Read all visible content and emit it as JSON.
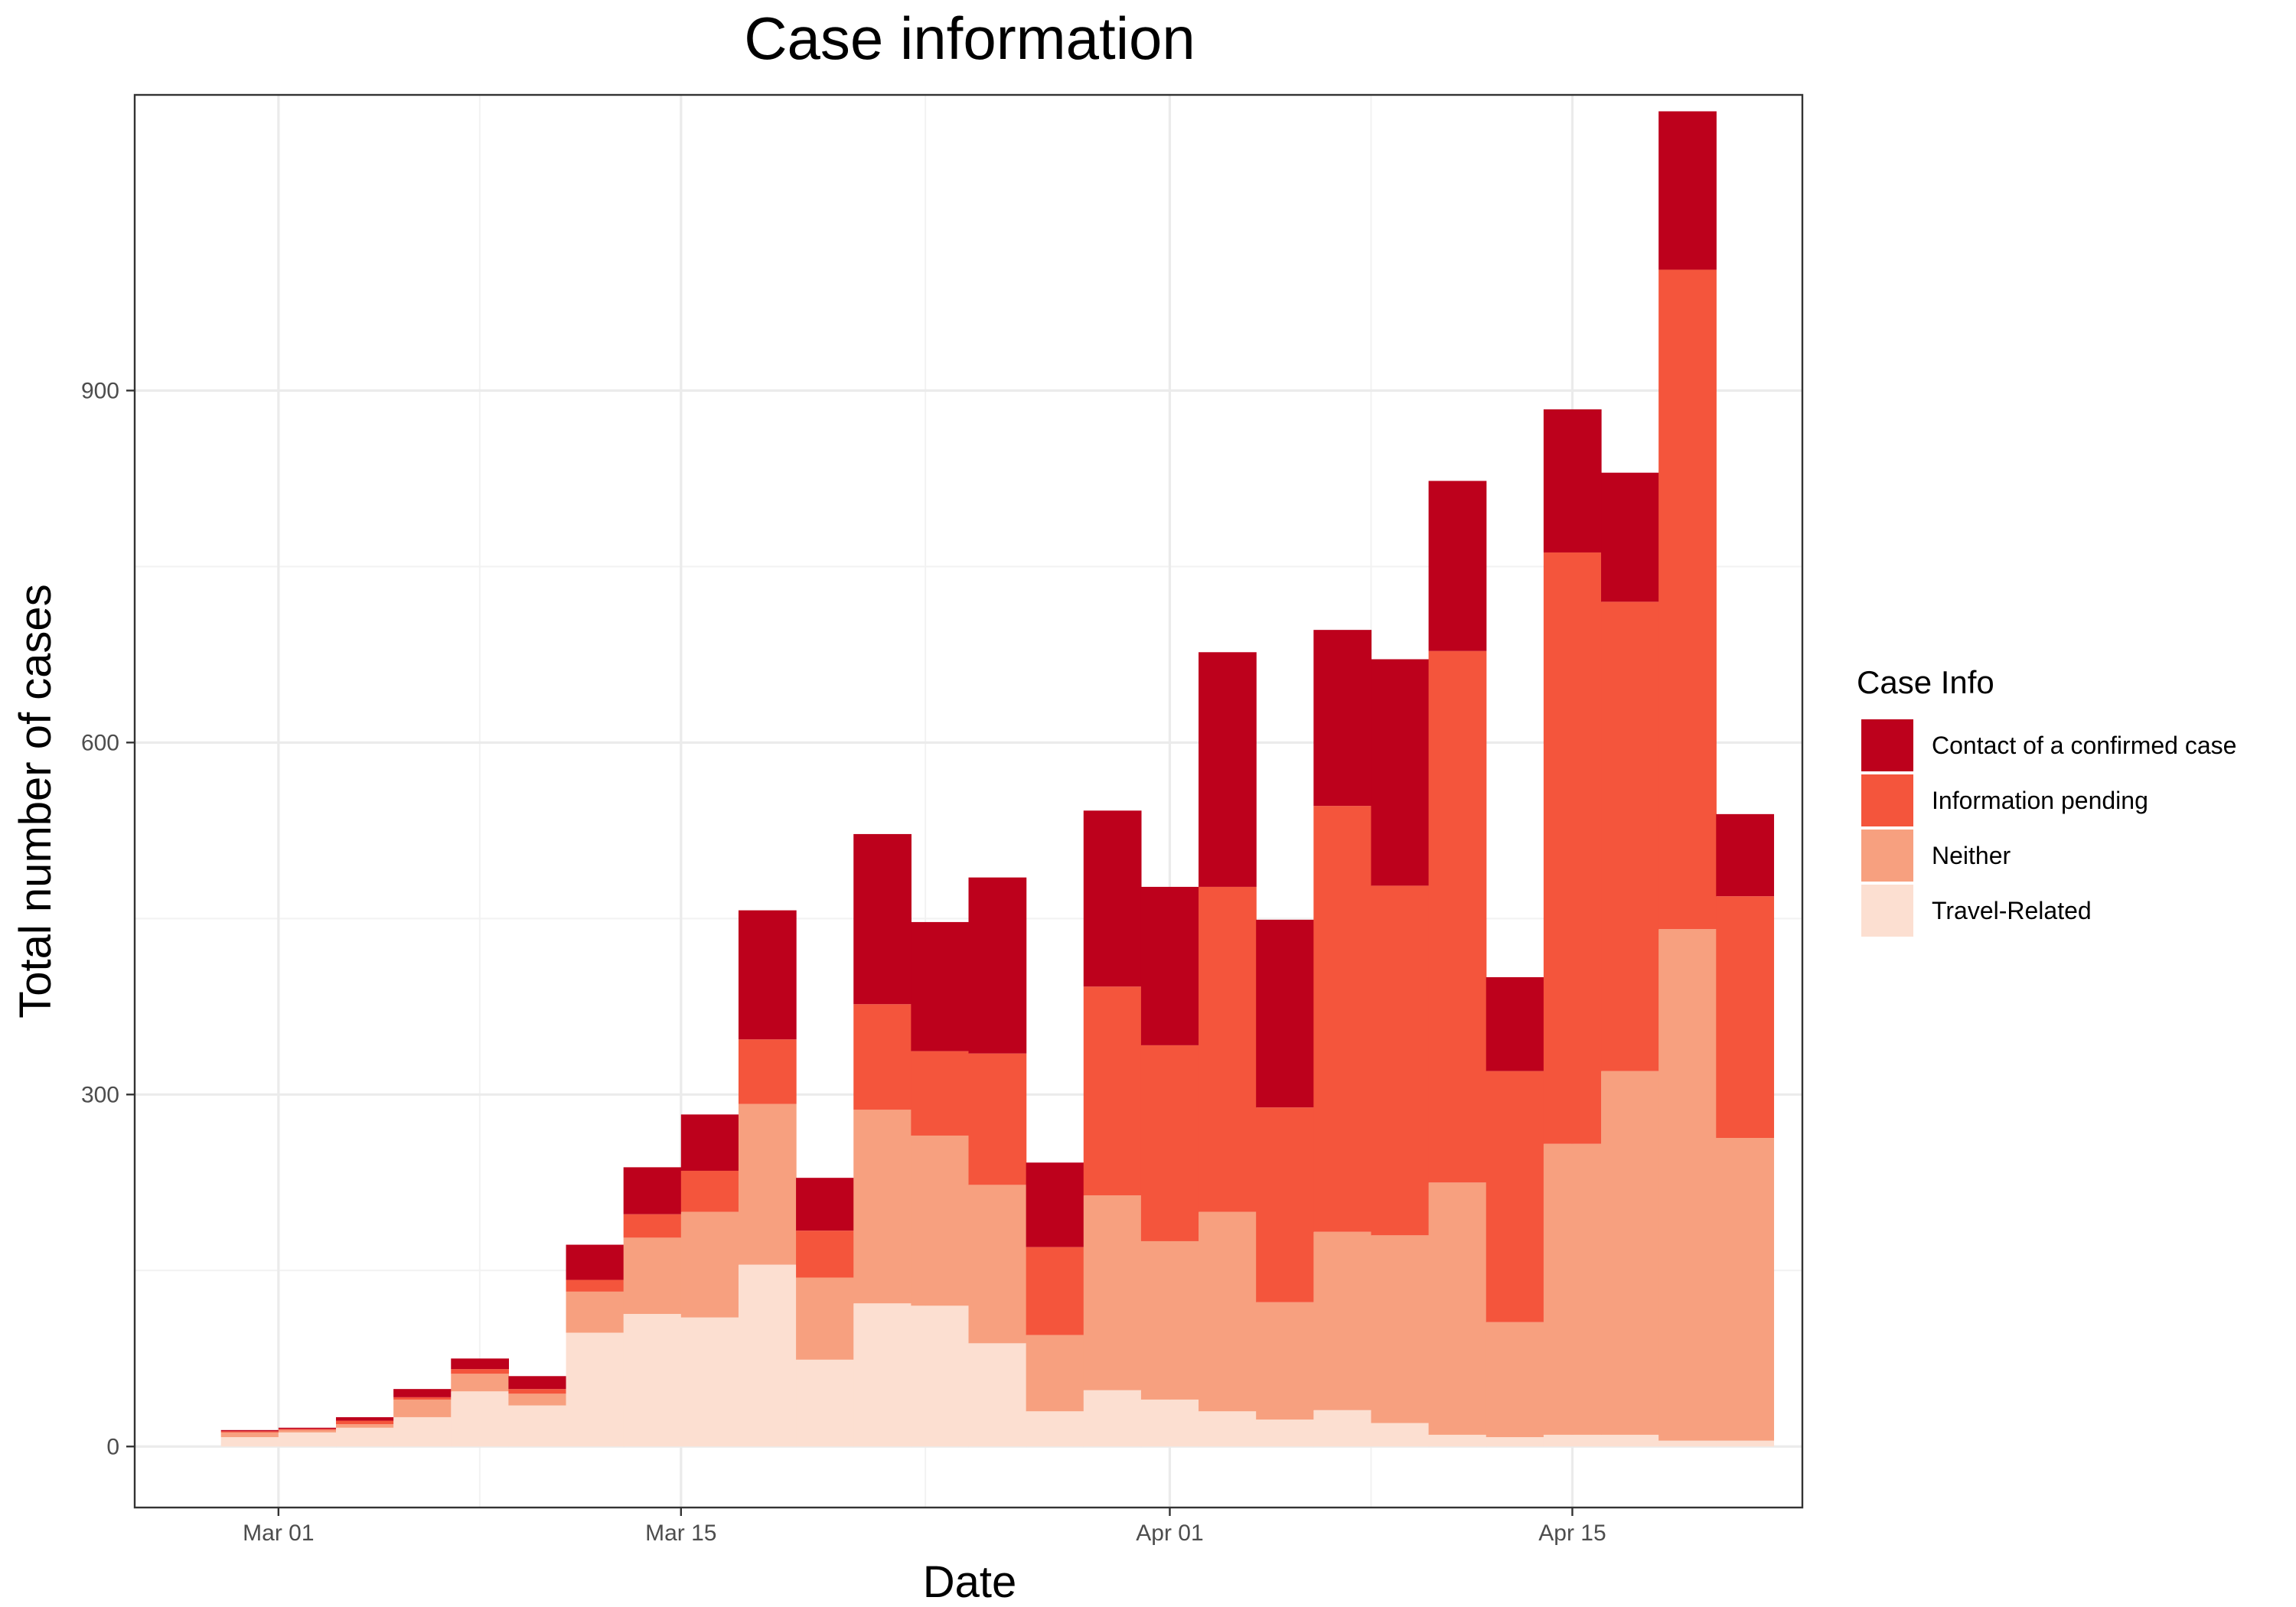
{
  "chart_data": {
    "type": "bar",
    "stacked": true,
    "title": "Case information",
    "xlabel": "Date",
    "ylabel": "Total number of cases",
    "ylim": [
      -52,
      1152
    ],
    "yticks": [
      0,
      300,
      600,
      900
    ],
    "xlim": [
      "2020-02-25",
      "2020-04-23"
    ],
    "xticks": [
      {
        "date": "2020-03-01",
        "label": "Mar 01"
      },
      {
        "date": "2020-03-15",
        "label": "Mar 15"
      },
      {
        "date": "2020-04-01",
        "label": "Apr 01"
      },
      {
        "date": "2020-04-15",
        "label": "Apr 15"
      }
    ],
    "grid": true,
    "legend": {
      "title": "Case Info",
      "position": "right",
      "entries": [
        "Contact of a confirmed case",
        "Information pending",
        "Neither",
        "Travel-Related"
      ]
    },
    "categories": [
      "2020-02-29",
      "2020-03-02",
      "2020-03-04",
      "2020-03-06",
      "2020-03-08",
      "2020-03-10",
      "2020-03-12",
      "2020-03-14",
      "2020-03-16",
      "2020-03-18",
      "2020-03-20",
      "2020-03-22",
      "2020-03-24",
      "2020-03-26",
      "2020-03-28",
      "2020-03-30",
      "2020-04-01",
      "2020-04-03",
      "2020-04-05",
      "2020-04-07",
      "2020-04-09",
      "2020-04-11",
      "2020-04-13",
      "2020-04-15",
      "2020-04-17",
      "2020-04-19",
      "2020-04-21"
    ],
    "series": [
      {
        "name": "Travel-Related",
        "color": "#fcdfd1",
        "values": [
          8,
          12,
          16,
          25,
          47,
          35,
          97,
          113,
          110,
          155,
          74,
          122,
          120,
          88,
          30,
          48,
          40,
          30,
          23,
          31,
          20,
          10,
          8,
          10,
          10,
          5,
          5
        ]
      },
      {
        "name": "Neither",
        "color": "#f7a07f",
        "values": [
          4,
          2,
          3,
          15,
          15,
          10,
          35,
          65,
          90,
          137,
          70,
          165,
          145,
          135,
          65,
          166,
          135,
          170,
          100,
          152,
          160,
          215,
          98,
          248,
          310,
          436,
          258
        ]
      },
      {
        "name": "Information pending",
        "color": "#f4553c",
        "values": [
          1,
          1,
          3,
          2,
          4,
          4,
          10,
          20,
          35,
          55,
          40,
          90,
          72,
          112,
          75,
          178,
          167,
          277,
          166,
          363,
          298,
          453,
          214,
          504,
          400,
          562,
          206
        ]
      },
      {
        "name": "Contact of a confirmed case",
        "color": "#bd011c",
        "values": [
          1,
          1,
          3,
          7,
          9,
          11,
          30,
          40,
          48,
          110,
          45,
          145,
          110,
          150,
          72,
          150,
          135,
          200,
          160,
          150,
          193,
          145,
          80,
          122,
          110,
          135,
          70
        ]
      }
    ]
  }
}
